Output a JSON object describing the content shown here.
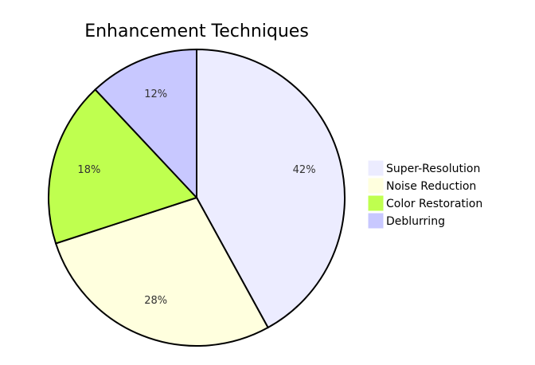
{
  "chart_data": {
    "type": "pie",
    "title": "Enhancement Techniques",
    "categories": [
      "Super-Resolution",
      "Noise Reduction",
      "Color Restoration",
      "Deblurring"
    ],
    "values": [
      42,
      28,
      18,
      12
    ],
    "value_labels": [
      "42%",
      "28%",
      "18%",
      "12%"
    ],
    "colors": [
      "#ececff",
      "#ffffde",
      "#bfff4f",
      "#c8c8ff"
    ]
  }
}
